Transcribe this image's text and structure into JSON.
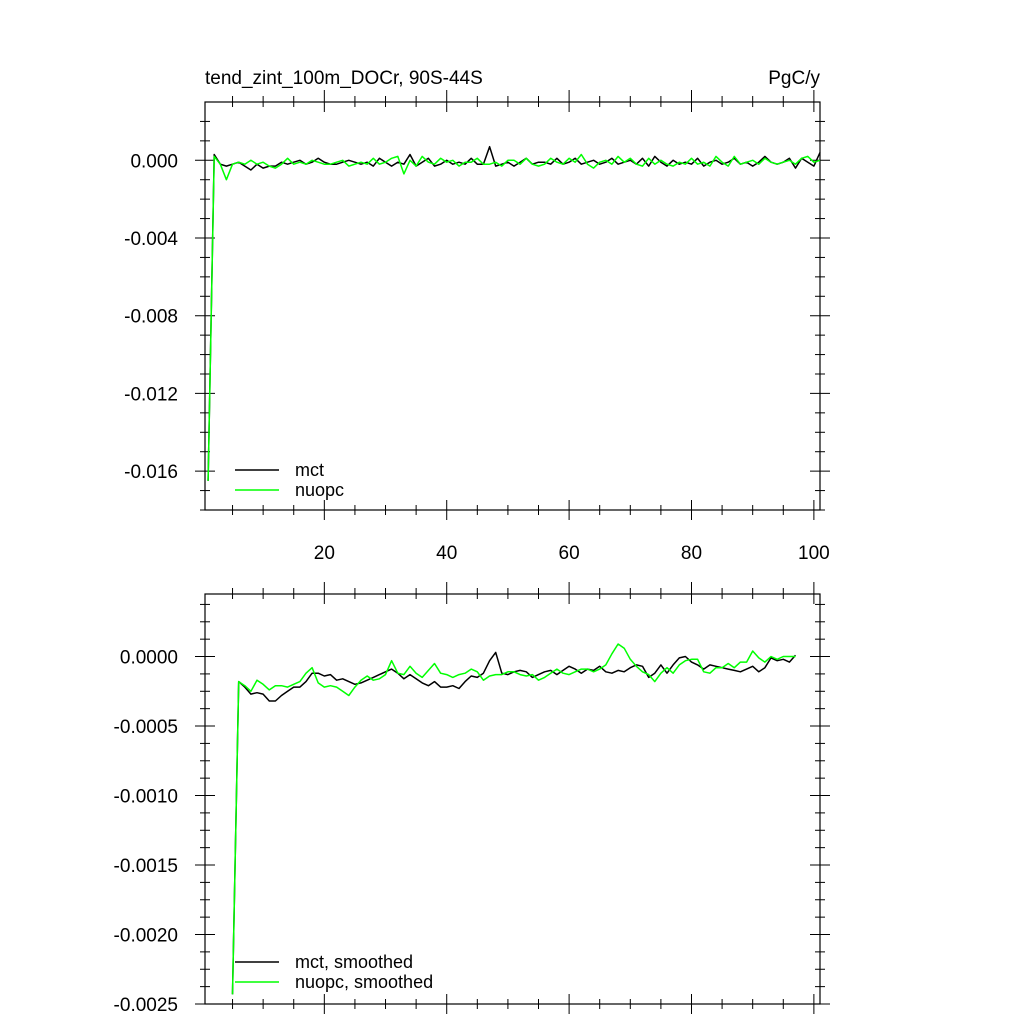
{
  "chart_data": [
    {
      "type": "line",
      "title": "tend_zint_100m_DOCr, 90S-44S",
      "units": "PgC/y",
      "xlim": [
        0.5,
        101
      ],
      "ylim": [
        -0.018,
        0.003
      ],
      "xticks": [
        20,
        40,
        60,
        80,
        100
      ],
      "xtick_labels": [
        "20",
        "40",
        "60",
        "80",
        "100"
      ],
      "yticks": [
        0.0,
        -0.004,
        -0.008,
        -0.012,
        -0.016
      ],
      "ytick_labels": [
        "0.000",
        "-0.004",
        "-0.008",
        "-0.012",
        "-0.016"
      ],
      "grid": false,
      "legend_position": "bottom-left",
      "series": [
        {
          "name": "mct",
          "color": "#000000",
          "x": [
            1,
            2,
            3,
            4,
            5,
            6,
            7,
            8,
            9,
            10,
            11,
            12,
            13,
            14,
            15,
            16,
            17,
            18,
            19,
            20,
            21,
            22,
            23,
            24,
            25,
            26,
            27,
            28,
            29,
            30,
            31,
            32,
            33,
            34,
            35,
            36,
            37,
            38,
            39,
            40,
            41,
            42,
            43,
            44,
            45,
            46,
            47,
            48,
            49,
            50,
            51,
            52,
            53,
            54,
            55,
            56,
            57,
            58,
            59,
            60,
            61,
            62,
            63,
            64,
            65,
            66,
            67,
            68,
            69,
            70,
            71,
            72,
            73,
            74,
            75,
            76,
            77,
            78,
            79,
            80,
            81,
            82,
            83,
            84,
            85,
            86,
            87,
            88,
            89,
            90,
            91,
            92,
            93,
            94,
            95,
            96,
            97,
            98,
            99,
            100,
            101
          ],
          "values": [
            -0.0165,
            0.0003,
            -0.0002,
            -0.0003,
            -0.0002,
            -0.0001,
            -0.0003,
            -0.0005,
            -0.0002,
            -0.0004,
            -0.0003,
            -0.0003,
            -0.0001,
            -0.0002,
            -0.0001,
            0.0,
            -0.0002,
            -0.0001,
            0.0001,
            -0.0001,
            -0.0002,
            -0.0002,
            -0.0001,
            0.0,
            -0.0001,
            -0.0002,
            -0.0001,
            -0.0003,
            0.0001,
            -0.0001,
            -0.0003,
            -0.0001,
            -0.0002,
            0.0003,
            -0.0003,
            -0.0001,
            0.0001,
            -0.0003,
            -0.0002,
            0.0,
            -0.0002,
            -0.0001,
            -0.0002,
            0.0001,
            -0.0002,
            -0.0002,
            0.0007,
            -0.0003,
            -0.0002,
            -0.0001,
            -0.0003,
            -0.0001,
            0.0001,
            -0.0002,
            -0.0001,
            -0.0001,
            -0.0002,
            0.0001,
            -0.0002,
            -0.0001,
            0.0001,
            -0.0002,
            -0.0001,
            0.0,
            -0.0002,
            -0.0001,
            0.0001,
            -0.0002,
            -0.0001,
            0.0,
            -0.0002,
            0.0001,
            -0.0003,
            0.0002,
            -0.0001,
            -0.0003,
            0.0,
            -0.0002,
            -0.0001,
            -0.0002,
            0.0001,
            -0.0003,
            -0.0001,
            0.0,
            -0.0002,
            -0.0001,
            0.0001,
            -0.0002,
            -0.0001,
            -0.0003,
            -0.0001,
            0.0002,
            -0.0001,
            -0.0002,
            -0.0001,
            0.0001,
            -0.0004,
            0.0001,
            -0.0001,
            -0.0003,
            0.0004
          ]
        },
        {
          "name": "nuopc",
          "color": "#00ff00",
          "x": [
            1,
            2,
            3,
            4,
            5,
            6,
            7,
            8,
            9,
            10,
            11,
            12,
            13,
            14,
            15,
            16,
            17,
            18,
            19,
            20,
            21,
            22,
            23,
            24,
            25,
            26,
            27,
            28,
            29,
            30,
            31,
            32,
            33,
            34,
            35,
            36,
            37,
            38,
            39,
            40,
            41,
            42,
            43,
            44,
            45,
            46,
            47,
            48,
            49,
            50,
            51,
            52,
            53,
            54,
            55,
            56,
            57,
            58,
            59,
            60,
            61,
            62,
            63,
            64,
            65,
            66,
            67,
            68,
            69,
            70,
            71,
            72,
            73,
            74,
            75,
            76,
            77,
            78,
            79,
            80,
            81,
            82,
            83,
            84,
            85,
            86,
            87,
            88,
            89,
            90,
            91,
            92,
            93,
            94,
            95,
            96,
            97,
            98,
            99,
            100,
            101
          ],
          "values": [
            -0.0165,
            0.0002,
            -0.0002,
            -0.001,
            -0.0002,
            -0.0001,
            -0.0002,
            0.0,
            -0.0002,
            -0.0001,
            -0.0003,
            -0.0004,
            -0.0002,
            0.0001,
            -0.0002,
            -0.0001,
            -0.0002,
            0.0,
            -0.0001,
            -0.0002,
            -0.0002,
            -0.0001,
            0.0,
            -0.0003,
            -0.0002,
            -0.0001,
            -0.0002,
            0.0001,
            -0.0002,
            -0.0001,
            0.0001,
            0.0002,
            -0.0007,
            0.0,
            -0.0003,
            0.0002,
            -0.0001,
            -0.0002,
            0.0001,
            -0.0001,
            0.0,
            -0.0003,
            -0.0001,
            -0.0001,
            0.0001,
            -0.0002,
            -0.0002,
            -0.0001,
            -0.0003,
            0.0,
            0.0,
            -0.0002,
            0.0001,
            -0.0002,
            -0.0003,
            -0.0002,
            0.0001,
            -0.0001,
            -0.0002,
            0.0001,
            -0.0001,
            0.0003,
            -0.0002,
            -0.0004,
            -0.0001,
            0.0,
            -0.0002,
            0.0002,
            -0.0001,
            0.0001,
            -0.0002,
            -0.0003,
            0.0001,
            -0.0002,
            0.0,
            -0.0002,
            -0.0003,
            -0.0001,
            -0.0002,
            0.0001,
            -0.0002,
            -0.0001,
            -0.0003,
            0.0002,
            -0.0001,
            -0.0003,
            0.0002,
            -0.0002,
            -0.0001,
            0.0,
            -0.0002,
            0.0001,
            -0.0001,
            -0.0002,
            -0.0001,
            0.0,
            -0.0002,
            0.0001,
            0.0002,
            -0.0001,
            0.0
          ]
        }
      ]
    },
    {
      "type": "line",
      "title": "",
      "units": "",
      "xlim": [
        0.5,
        101
      ],
      "ylim": [
        -0.0025,
        0.00045
      ],
      "xticks": [
        20,
        40,
        60,
        80,
        100
      ],
      "xtick_labels": [],
      "yticks": [
        0.0,
        -0.0005,
        -0.001,
        -0.0015,
        -0.002,
        -0.0025
      ],
      "ytick_labels": [
        "0.0000",
        "-0.0005",
        "-0.0010",
        "-0.0015",
        "-0.0020",
        "-0.0025"
      ],
      "grid": false,
      "legend_position": "bottom-left",
      "series": [
        {
          "name": "mct, smoothed",
          "color": "#000000",
          "x": [
            5,
            6,
            7,
            8,
            9,
            10,
            11,
            12,
            13,
            14,
            15,
            16,
            17,
            18,
            19,
            20,
            21,
            22,
            23,
            24,
            25,
            26,
            27,
            28,
            29,
            30,
            31,
            32,
            33,
            34,
            35,
            36,
            37,
            38,
            39,
            40,
            41,
            42,
            43,
            44,
            45,
            46,
            47,
            48,
            49,
            50,
            51,
            52,
            53,
            54,
            55,
            56,
            57,
            58,
            59,
            60,
            61,
            62,
            63,
            64,
            65,
            66,
            67,
            68,
            69,
            70,
            71,
            72,
            73,
            74,
            75,
            76,
            77,
            78,
            79,
            80,
            81,
            82,
            83,
            84,
            85,
            86,
            87,
            88,
            89,
            90,
            91,
            92,
            93,
            94,
            95,
            96,
            97
          ],
          "values": [
            -0.00243,
            -0.00018,
            -0.00022,
            -0.00027,
            -0.00026,
            -0.00027,
            -0.00032,
            -0.00032,
            -0.00028,
            -0.00025,
            -0.00022,
            -0.00022,
            -0.00018,
            -0.00012,
            -0.00012,
            -0.00014,
            -0.00013,
            -0.00017,
            -0.00016,
            -0.00018,
            -0.0002,
            -0.00019,
            -0.00017,
            -0.00015,
            -0.00013,
            -0.00011,
            -9e-05,
            -0.00012,
            -0.00016,
            -0.00013,
            -0.00016,
            -0.00019,
            -0.00021,
            -0.00018,
            -0.00022,
            -0.00022,
            -0.00021,
            -0.00023,
            -0.00018,
            -0.00014,
            -0.00015,
            -0.00012,
            -3e-05,
            3e-05,
            -0.00012,
            -0.00013,
            -0.00011,
            -0.0001,
            -0.00011,
            -0.00015,
            -0.00013,
            -0.00011,
            -0.0001,
            -0.00013,
            -0.0001,
            -7e-05,
            -9e-05,
            -0.00012,
            -9e-05,
            -0.0001,
            -7e-05,
            -0.00011,
            -0.00012,
            -0.0001,
            -0.00011,
            -8e-05,
            -6e-05,
            -7e-05,
            -0.00015,
            -0.00012,
            -6e-05,
            -0.00012,
            -6e-05,
            -1e-05,
            0.0,
            -4e-05,
            -6e-05,
            -9e-05,
            -6e-05,
            -7e-05,
            -8e-05,
            -9e-05,
            -0.0001,
            -0.00011,
            -9e-05,
            -7e-05,
            -0.00011,
            -8e-05,
            -1e-05,
            -3e-05,
            -2e-05,
            -4e-05,
            1e-05
          ]
        },
        {
          "name": "nuopc, smoothed",
          "color": "#00ff00",
          "x": [
            5,
            6,
            7,
            8,
            9,
            10,
            11,
            12,
            13,
            14,
            15,
            16,
            17,
            18,
            19,
            20,
            21,
            22,
            23,
            24,
            25,
            26,
            27,
            28,
            29,
            30,
            31,
            32,
            33,
            34,
            35,
            36,
            37,
            38,
            39,
            40,
            41,
            42,
            43,
            44,
            45,
            46,
            47,
            48,
            49,
            50,
            51,
            52,
            53,
            54,
            55,
            56,
            57,
            58,
            59,
            60,
            61,
            62,
            63,
            64,
            65,
            66,
            67,
            68,
            69,
            70,
            71,
            72,
            73,
            74,
            75,
            76,
            77,
            78,
            79,
            80,
            81,
            82,
            83,
            84,
            85,
            86,
            87,
            88,
            89,
            90,
            91,
            92,
            93,
            94,
            95,
            96,
            97
          ],
          "values": [
            -0.00243,
            -0.00018,
            -0.00021,
            -0.00025,
            -0.00017,
            -0.0002,
            -0.00024,
            -0.00021,
            -0.00021,
            -0.00022,
            -0.0002,
            -0.00018,
            -0.00012,
            -8e-05,
            -0.00019,
            -0.00022,
            -0.00021,
            -0.00022,
            -0.00025,
            -0.00028,
            -0.00022,
            -0.00017,
            -0.00014,
            -0.00017,
            -0.00016,
            -0.00013,
            -3e-05,
            -0.00012,
            -0.00013,
            -7e-05,
            -0.00012,
            -0.00015,
            -0.0001,
            -5e-05,
            -0.00012,
            -0.00013,
            -0.00015,
            -0.00013,
            -0.00012,
            -9e-05,
            -0.00011,
            -0.00017,
            -0.00014,
            -0.00013,
            -0.00013,
            -0.00011,
            -0.00011,
            -0.00013,
            -0.00014,
            -0.00013,
            -0.00017,
            -0.00015,
            -0.00012,
            -9e-05,
            -0.00012,
            -0.00013,
            -0.00011,
            -9e-05,
            -9e-05,
            -0.00011,
            -9e-05,
            -6e-05,
            2e-05,
            9e-05,
            6e-05,
            -2e-05,
            -7e-05,
            -0.00011,
            -0.00013,
            -0.00018,
            -0.00012,
            -8e-05,
            -0.00012,
            -6e-05,
            -3e-05,
            -2e-05,
            -2e-05,
            -0.00011,
            -0.00012,
            -8e-05,
            -8e-05,
            -5e-05,
            -8e-05,
            -4e-05,
            -4e-05,
            4e-05,
            -1e-05,
            -4e-05,
            0.0,
            -2e-05,
            0.0,
            0.0,
            0.0
          ]
        }
      ]
    }
  ]
}
